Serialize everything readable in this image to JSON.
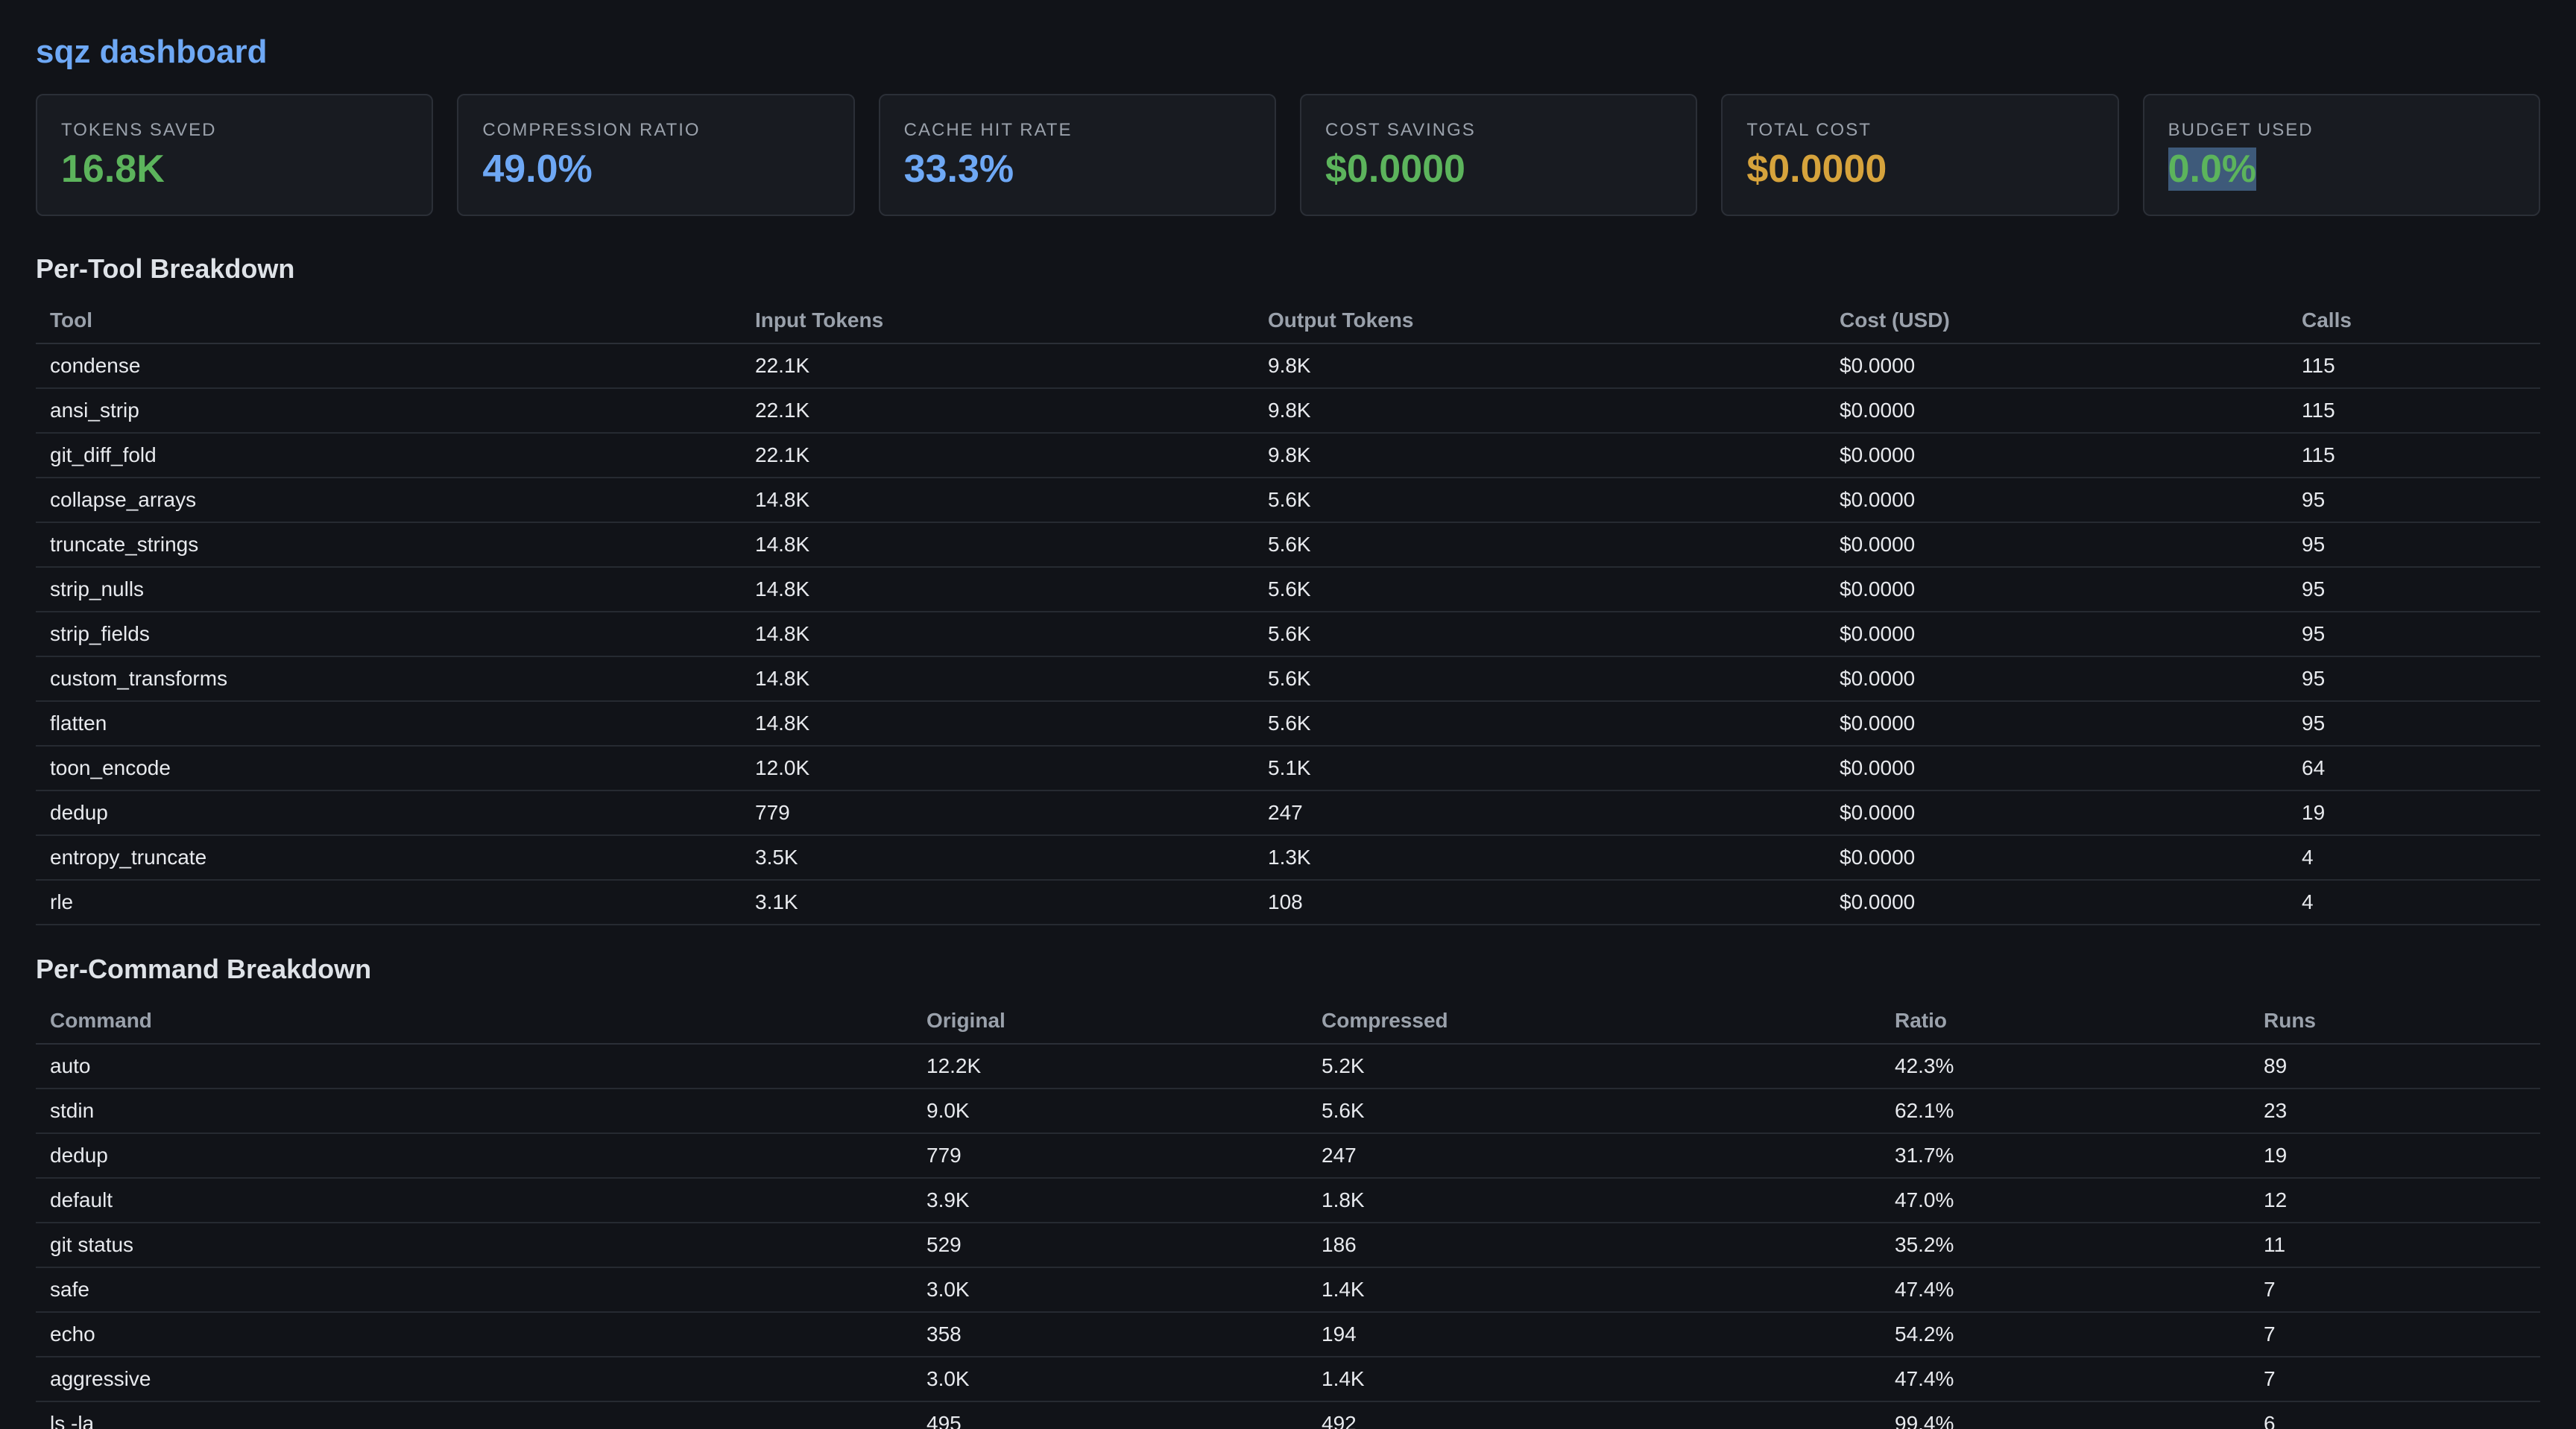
{
  "app": {
    "title": "sqz dashboard"
  },
  "colors": {
    "green": "#5cb45c",
    "blue": "#6ea8f5",
    "gold": "#d6a33c"
  },
  "cards": [
    {
      "label": "TOKENS SAVED",
      "value": "16.8K",
      "color": "#5cb45c",
      "highlighted": false
    },
    {
      "label": "COMPRESSION RATIO",
      "value": "49.0%",
      "color": "#6ea8f5",
      "highlighted": false
    },
    {
      "label": "CACHE HIT RATE",
      "value": "33.3%",
      "color": "#6ea8f5",
      "highlighted": false
    },
    {
      "label": "COST SAVINGS",
      "value": "$0.0000",
      "color": "#5cb45c",
      "highlighted": false
    },
    {
      "label": "TOTAL COST",
      "value": "$0.0000",
      "color": "#d6a33c",
      "highlighted": false
    },
    {
      "label": "BUDGET USED",
      "value": "0.0%",
      "color": "#5cb45c",
      "highlighted": true
    }
  ],
  "tool_breakdown": {
    "title": "Per-Tool Breakdown",
    "columns": [
      "Tool",
      "Input Tokens",
      "Output Tokens",
      "Cost (USD)",
      "Calls"
    ],
    "rows": [
      [
        "condense",
        "22.1K",
        "9.8K",
        "$0.0000",
        "115"
      ],
      [
        "ansi_strip",
        "22.1K",
        "9.8K",
        "$0.0000",
        "115"
      ],
      [
        "git_diff_fold",
        "22.1K",
        "9.8K",
        "$0.0000",
        "115"
      ],
      [
        "collapse_arrays",
        "14.8K",
        "5.6K",
        "$0.0000",
        "95"
      ],
      [
        "truncate_strings",
        "14.8K",
        "5.6K",
        "$0.0000",
        "95"
      ],
      [
        "strip_nulls",
        "14.8K",
        "5.6K",
        "$0.0000",
        "95"
      ],
      [
        "strip_fields",
        "14.8K",
        "5.6K",
        "$0.0000",
        "95"
      ],
      [
        "custom_transforms",
        "14.8K",
        "5.6K",
        "$0.0000",
        "95"
      ],
      [
        "flatten",
        "14.8K",
        "5.6K",
        "$0.0000",
        "95"
      ],
      [
        "toon_encode",
        "12.0K",
        "5.1K",
        "$0.0000",
        "64"
      ],
      [
        "dedup",
        "779",
        "247",
        "$0.0000",
        "19"
      ],
      [
        "entropy_truncate",
        "3.5K",
        "1.3K",
        "$0.0000",
        "4"
      ],
      [
        "rle",
        "3.1K",
        "108",
        "$0.0000",
        "4"
      ]
    ]
  },
  "command_breakdown": {
    "title": "Per-Command Breakdown",
    "columns": [
      "Command",
      "Original",
      "Compressed",
      "Ratio",
      "Runs"
    ],
    "rows": [
      [
        "auto",
        "12.2K",
        "5.2K",
        "42.3%",
        "89"
      ],
      [
        "stdin",
        "9.0K",
        "5.6K",
        "62.1%",
        "23"
      ],
      [
        "dedup",
        "779",
        "247",
        "31.7%",
        "19"
      ],
      [
        "default",
        "3.9K",
        "1.8K",
        "47.0%",
        "12"
      ],
      [
        "git status",
        "529",
        "186",
        "35.2%",
        "11"
      ],
      [
        "safe",
        "3.0K",
        "1.4K",
        "47.4%",
        "7"
      ],
      [
        "echo",
        "358",
        "194",
        "54.2%",
        "7"
      ],
      [
        "aggressive",
        "3.0K",
        "1.4K",
        "47.4%",
        "7"
      ],
      [
        "ls -la",
        "495",
        "492",
        "99.4%",
        "6"
      ]
    ]
  }
}
